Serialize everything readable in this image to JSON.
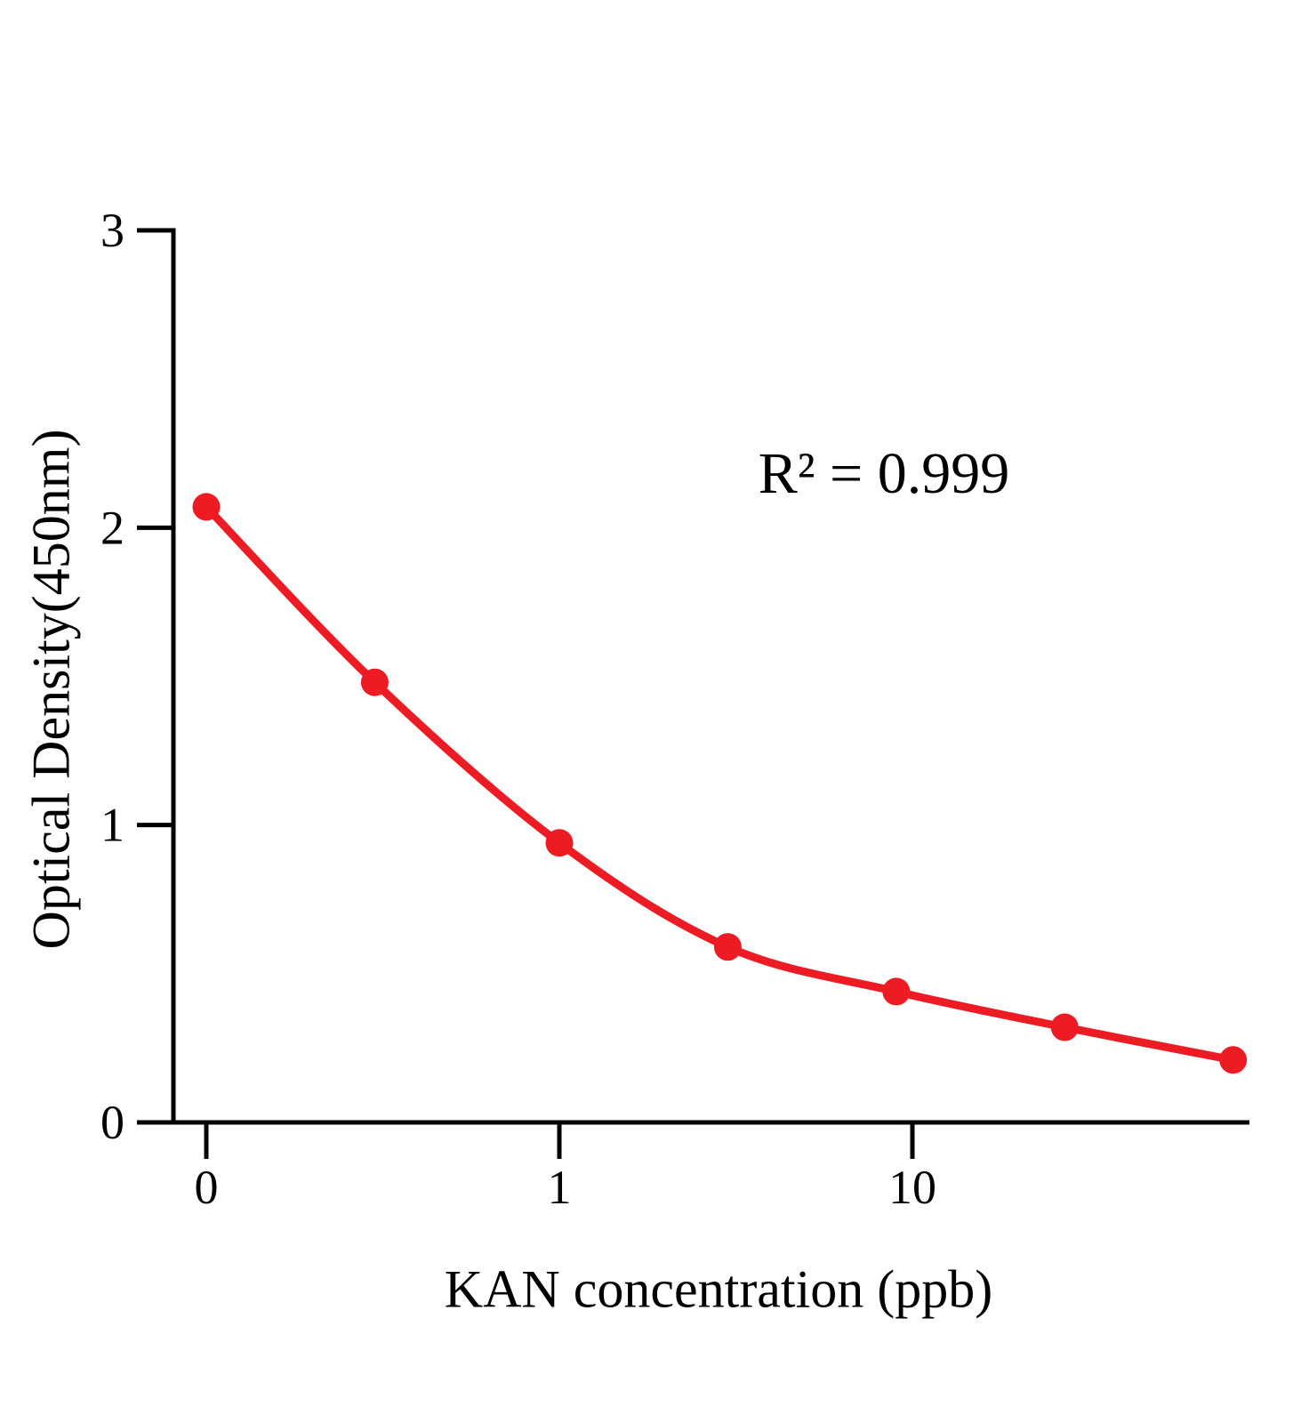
{
  "chart_data": {
    "type": "scatter",
    "x": [
      0,
      0.3,
      1,
      3,
      9,
      27,
      81
    ],
    "y": [
      2.07,
      1.48,
      0.94,
      0.59,
      0.44,
      0.32,
      0.21
    ],
    "xlabel": "KAN concentration (ppb)",
    "ylabel": "Optical Density(450nm)",
    "annotation": "R² = 0.999",
    "x_scale": "log",
    "x_zero_plotted_at": 0.1,
    "x_ticks": [
      {
        "value": 0,
        "label": "0"
      },
      {
        "value": 1,
        "label": "1"
      },
      {
        "value": 10,
        "label": "10"
      }
    ],
    "y_ticks": [
      {
        "value": 0,
        "label": "0"
      },
      {
        "value": 1,
        "label": "1"
      },
      {
        "value": 2,
        "label": "2"
      },
      {
        "value": 3,
        "label": "3"
      }
    ],
    "ylim": [
      0,
      3
    ],
    "grid": false,
    "legend": "none",
    "colors": {
      "series": "#ed1c24",
      "axis": "#000000",
      "background": "#ffffff"
    }
  }
}
